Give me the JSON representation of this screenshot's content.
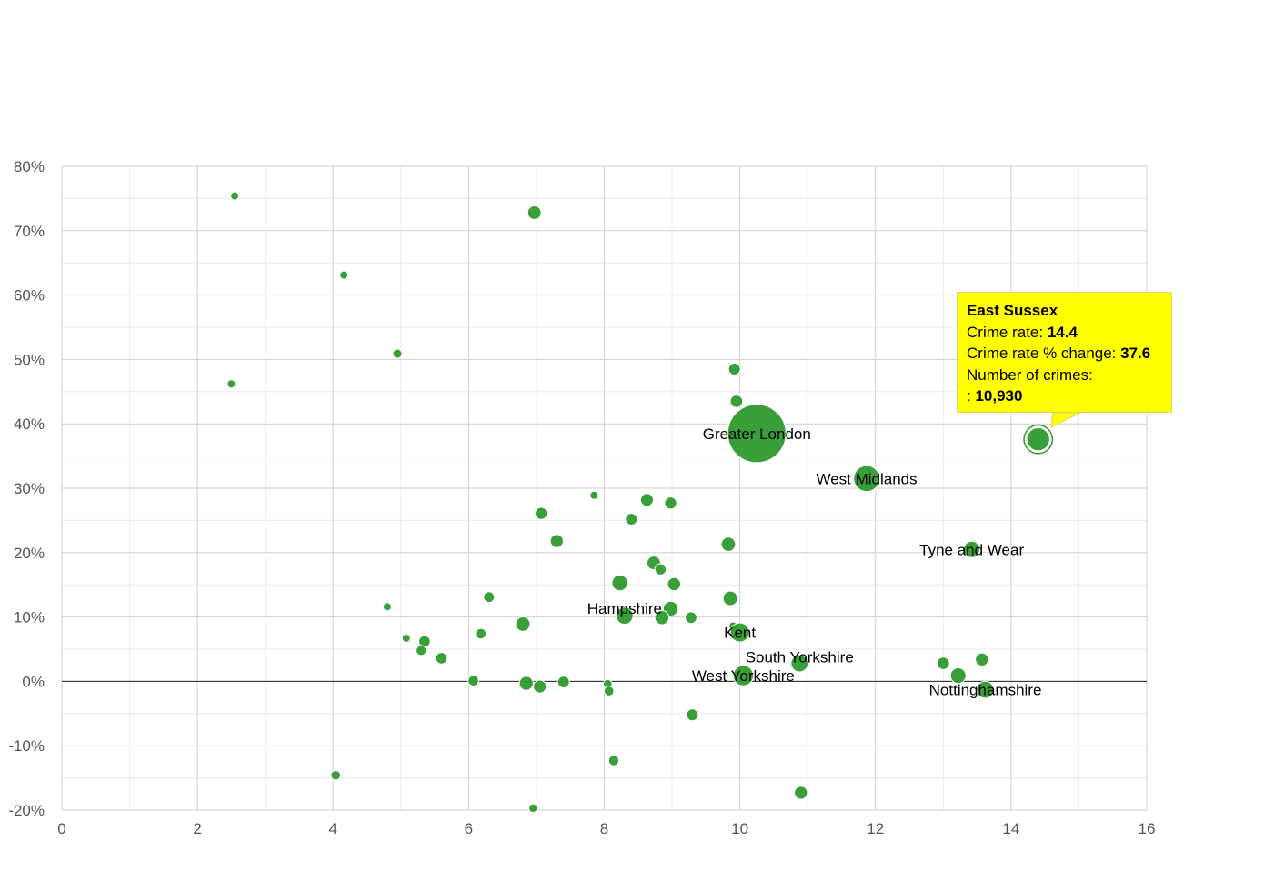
{
  "chart_data": {
    "type": "scatter",
    "title": "",
    "xlabel": "",
    "ylabel": "",
    "xlim": [
      0,
      16
    ],
    "ylim": [
      -20,
      80
    ],
    "x_ticks": [
      {
        "value": 0,
        "label": "0"
      },
      {
        "value": 2,
        "label": "2"
      },
      {
        "value": 4,
        "label": "4"
      },
      {
        "value": 6,
        "label": "6"
      },
      {
        "value": 8,
        "label": "8"
      },
      {
        "value": 10,
        "label": "10"
      },
      {
        "value": 12,
        "label": "12"
      },
      {
        "value": 14,
        "label": "14"
      },
      {
        "value": 16,
        "label": "16"
      }
    ],
    "y_ticks": [
      {
        "value": -20,
        "label": "-20%"
      },
      {
        "value": -10,
        "label": "-10%"
      },
      {
        "value": 0,
        "label": "0%"
      },
      {
        "value": 10,
        "label": "10%"
      },
      {
        "value": 20,
        "label": "20%"
      },
      {
        "value": 30,
        "label": "30%"
      },
      {
        "value": 40,
        "label": "40%"
      },
      {
        "value": 50,
        "label": "50%"
      },
      {
        "value": 60,
        "label": "60%"
      },
      {
        "value": 70,
        "label": "70%"
      },
      {
        "value": 80,
        "label": "80%"
      }
    ],
    "colors": {
      "point": "#2e9a2e",
      "point_stroke": "#ffffff",
      "zero_line": "#222222",
      "grid_major": "#d0d0d0",
      "grid_minor": "#ececec",
      "tooltip_bg": "#ffff00"
    },
    "points": [
      {
        "x": 2.55,
        "y": 75.4,
        "n": 600
      },
      {
        "x": 6.97,
        "y": 72.8,
        "n": 3800
      },
      {
        "x": 4.16,
        "y": 63.1,
        "n": 1100
      },
      {
        "x": 4.95,
        "y": 50.9,
        "n": 1700
      },
      {
        "x": 2.5,
        "y": 46.2,
        "n": 700
      },
      {
        "x": 9.92,
        "y": 48.5,
        "n": 2900
      },
      {
        "x": 9.95,
        "y": 43.5,
        "n": 3200
      },
      {
        "x": 10.25,
        "y": 38.5,
        "n": 70000,
        "label": "Greater London"
      },
      {
        "x": 11.87,
        "y": 31.5,
        "n": 14000,
        "label": "West Midlands"
      },
      {
        "x": 14.4,
        "y": 37.6,
        "n": 10930
      },
      {
        "x": 13.42,
        "y": 20.5,
        "n": 5500,
        "label": "Tyne and Wear"
      },
      {
        "x": 7.85,
        "y": 28.9,
        "n": 1100
      },
      {
        "x": 8.63,
        "y": 28.2,
        "n": 3400
      },
      {
        "x": 8.98,
        "y": 27.7,
        "n": 3000
      },
      {
        "x": 7.07,
        "y": 26.1,
        "n": 3000
      },
      {
        "x": 8.4,
        "y": 25.2,
        "n": 2900
      },
      {
        "x": 7.3,
        "y": 21.8,
        "n": 3500
      },
      {
        "x": 9.83,
        "y": 21.3,
        "n": 4200
      },
      {
        "x": 8.73,
        "y": 18.4,
        "n": 3800
      },
      {
        "x": 8.83,
        "y": 17.4,
        "n": 2600
      },
      {
        "x": 8.23,
        "y": 15.3,
        "n": 5200
      },
      {
        "x": 9.03,
        "y": 15.1,
        "n": 3600
      },
      {
        "x": 6.3,
        "y": 13.1,
        "n": 2400
      },
      {
        "x": 9.86,
        "y": 12.9,
        "n": 4300
      },
      {
        "x": 8.98,
        "y": 11.3,
        "n": 4600
      },
      {
        "x": 4.8,
        "y": 11.6,
        "n": 1100
      },
      {
        "x": 8.3,
        "y": 10.2,
        "n": 6000,
        "label": "Hampshire"
      },
      {
        "x": 8.85,
        "y": 9.9,
        "n": 4100
      },
      {
        "x": 9.28,
        "y": 9.9,
        "n": 2800
      },
      {
        "x": 6.8,
        "y": 8.9,
        "n": 4300
      },
      {
        "x": 9.9,
        "y": 8.6,
        "n": 1200
      },
      {
        "x": 10.0,
        "y": 7.6,
        "n": 7500,
        "label": "Kent"
      },
      {
        "x": 6.18,
        "y": 7.4,
        "n": 2300
      },
      {
        "x": 5.08,
        "y": 6.7,
        "n": 1100
      },
      {
        "x": 5.35,
        "y": 6.2,
        "n": 2700
      },
      {
        "x": 5.3,
        "y": 4.8,
        "n": 2100
      },
      {
        "x": 5.6,
        "y": 3.6,
        "n": 2700
      },
      {
        "x": 10.88,
        "y": 2.8,
        "n": 6000,
        "label": "South Yorkshire"
      },
      {
        "x": 13.0,
        "y": 2.8,
        "n": 3200
      },
      {
        "x": 13.57,
        "y": 3.4,
        "n": 3500
      },
      {
        "x": 10.05,
        "y": 0.9,
        "n": 8500,
        "label": "West Yorkshire"
      },
      {
        "x": 13.22,
        "y": 0.9,
        "n": 5000
      },
      {
        "x": 6.07,
        "y": 0.1,
        "n": 2300
      },
      {
        "x": 6.85,
        "y": -0.3,
        "n": 4000
      },
      {
        "x": 7.05,
        "y": -0.8,
        "n": 3400
      },
      {
        "x": 7.4,
        "y": -0.1,
        "n": 2800
      },
      {
        "x": 8.05,
        "y": -0.4,
        "n": 1600
      },
      {
        "x": 8.07,
        "y": -1.5,
        "n": 2000
      },
      {
        "x": 13.62,
        "y": -1.3,
        "n": 6000,
        "label": "Nottinghamshire"
      },
      {
        "x": 9.3,
        "y": -5.2,
        "n": 2900
      },
      {
        "x": 8.14,
        "y": -12.3,
        "n": 2200
      },
      {
        "x": 4.04,
        "y": -14.6,
        "n": 1900
      },
      {
        "x": 10.9,
        "y": -17.3,
        "n": 3500
      },
      {
        "x": 6.95,
        "y": -19.7,
        "n": 1500
      }
    ],
    "label_offsets": [
      {
        "label": "Greater London",
        "dx": 0,
        "dy": 0
      },
      {
        "label": "West Midlands",
        "dx": 0,
        "dy": 0
      },
      {
        "label": "Tyne and Wear",
        "dx": 0,
        "dy": 0
      },
      {
        "label": "Hampshire",
        "dx": 0,
        "dy": -8
      },
      {
        "label": "Kent",
        "dx": 0,
        "dy": 0
      },
      {
        "label": "South Yorkshire",
        "dx": 0,
        "dy": -7
      },
      {
        "label": "West Yorkshire",
        "dx": 0,
        "dy": 0
      },
      {
        "label": "Nottinghamshire",
        "dx": 0,
        "dy": 0
      }
    ]
  },
  "tooltip": {
    "title": "East Sussex",
    "crime_rate_label": "Crime rate:",
    "crime_rate_value": "14.4",
    "change_label": "Crime rate % change:",
    "change_value": "37.6",
    "crimes_label": "Number of crimes:",
    "crimes_prefix": ":",
    "crimes_value": "10,930"
  }
}
